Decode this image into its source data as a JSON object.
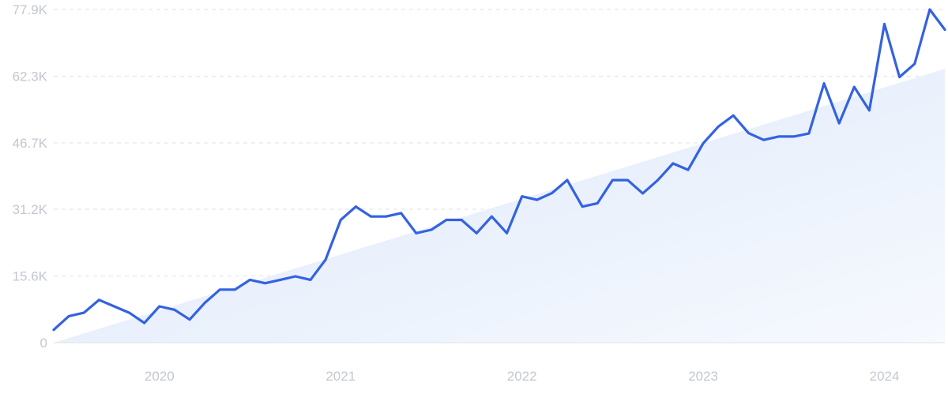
{
  "chart_data": {
    "type": "line",
    "title": "",
    "xlabel": "",
    "ylabel": "",
    "ylim": [
      0,
      77900
    ],
    "yticks": [
      {
        "value": 0,
        "label": "0"
      },
      {
        "value": 15600,
        "label": "15.6K"
      },
      {
        "value": 31200,
        "label": "31.2K"
      },
      {
        "value": 46700,
        "label": "46.7K"
      },
      {
        "value": 62300,
        "label": "62.3K"
      },
      {
        "value": 77900,
        "label": "77.9K"
      }
    ],
    "xticks": [
      {
        "value": "2020-01",
        "label": "2020"
      },
      {
        "value": "2021-01",
        "label": "2021"
      },
      {
        "value": "2022-01",
        "label": "2022"
      },
      {
        "value": "2023-01",
        "label": "2023"
      },
      {
        "value": "2024-01",
        "label": "2024"
      }
    ],
    "x": [
      "2019-06",
      "2019-07",
      "2019-08",
      "2019-09",
      "2019-10",
      "2019-11",
      "2019-12",
      "2020-01",
      "2020-02",
      "2020-03",
      "2020-04",
      "2020-05",
      "2020-06",
      "2020-07",
      "2020-08",
      "2020-09",
      "2020-10",
      "2020-11",
      "2020-12",
      "2021-01",
      "2021-02",
      "2021-03",
      "2021-04",
      "2021-05",
      "2021-06",
      "2021-07",
      "2021-08",
      "2021-09",
      "2021-10",
      "2021-11",
      "2021-12",
      "2022-01",
      "2022-02",
      "2022-03",
      "2022-04",
      "2022-05",
      "2022-06",
      "2022-07",
      "2022-08",
      "2022-09",
      "2022-10",
      "2022-11",
      "2022-12",
      "2023-01",
      "2023-02",
      "2023-03",
      "2023-04",
      "2023-05",
      "2023-06",
      "2023-07",
      "2023-08",
      "2023-09",
      "2023-10",
      "2023-11",
      "2023-12",
      "2024-01",
      "2024-02",
      "2024-03",
      "2024-04",
      "2024-05"
    ],
    "series": [
      {
        "values": [
          3000,
          6200,
          7000,
          10000,
          8500,
          7000,
          4600,
          8500,
          7700,
          5400,
          9300,
          12400,
          12400,
          14700,
          13900,
          14700,
          15500,
          14700,
          19400,
          28700,
          31800,
          29500,
          29500,
          30300,
          25600,
          26400,
          28700,
          28700,
          25600,
          29500,
          25600,
          34200,
          33400,
          35000,
          38000,
          31800,
          32600,
          38000,
          38000,
          34900,
          38000,
          41900,
          40400,
          46600,
          50500,
          53100,
          49000,
          47400,
          48200,
          48200,
          48900,
          60600,
          51300,
          59800,
          54300,
          74500,
          62100,
          65200,
          77900,
          73200
        ]
      }
    ],
    "trend": {
      "start": 0,
      "end": 64000
    },
    "grid": true,
    "legend": "none",
    "colors": {
      "line": "#3462e0",
      "area_top": "#dce8fa",
      "area_bottom": "#f6f9fe",
      "grid": "#dfe2e8",
      "axis": "#dfe2e8",
      "tick_text": "#c3c7d0"
    }
  }
}
